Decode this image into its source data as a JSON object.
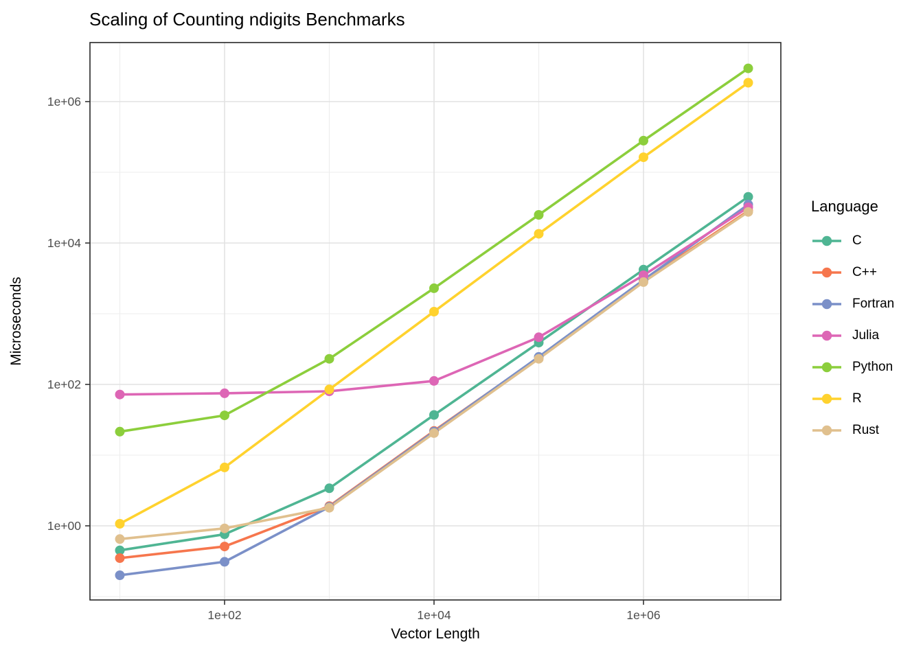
{
  "chart_data": {
    "type": "line",
    "title": "Scaling of Counting ndigits Benchmarks",
    "xlabel": "Vector Length",
    "ylabel": "Microseconds",
    "x_scale": "log10",
    "y_scale": "log10",
    "grid": true,
    "legend_title": "Language",
    "legend_position": "right",
    "x": [
      10,
      100,
      1000,
      10000,
      100000,
      1000000,
      10000000
    ],
    "x_ticks": [
      {
        "value": 100,
        "label": "1e+02"
      },
      {
        "value": 10000,
        "label": "1e+04"
      },
      {
        "value": 1000000,
        "label": "1e+06"
      }
    ],
    "y_ticks": [
      {
        "value": 1,
        "label": "1e+00"
      },
      {
        "value": 100,
        "label": "1e+02"
      },
      {
        "value": 10000,
        "label": "1e+04"
      },
      {
        "value": 1000000,
        "label": "1e+06"
      }
    ],
    "x_minor_grid_exponents": [
      1,
      3,
      5,
      7
    ],
    "x_major_grid_exponents": [
      2,
      4,
      6
    ],
    "y_major_grid_exponents": [
      0,
      2,
      4,
      6
    ],
    "y_minor_grid_exponents": [
      -1,
      1,
      3,
      5
    ],
    "series": [
      {
        "name": "C",
        "color": "#4FB593",
        "values": [
          0.45,
          0.76,
          3.4,
          37,
          390,
          4200,
          45000
        ]
      },
      {
        "name": "C++",
        "color": "#F6764D",
        "values": [
          0.35,
          0.51,
          1.9,
          22,
          240,
          2900,
          28500
        ]
      },
      {
        "name": "Fortran",
        "color": "#7B90C8",
        "values": [
          0.2,
          0.31,
          1.85,
          21.5,
          245,
          3000,
          35000
        ]
      },
      {
        "name": "Julia",
        "color": "#DD66B5",
        "values": [
          72,
          75,
          80,
          112,
          465,
          3500,
          32000
        ]
      },
      {
        "name": "Python",
        "color": "#8CCE3C",
        "values": [
          21.5,
          36.5,
          230,
          2290,
          25000,
          280000,
          2950000
        ]
      },
      {
        "name": "R",
        "color": "#FFD22E",
        "values": [
          1.07,
          6.7,
          85,
          1070,
          13500,
          163000,
          1850000
        ]
      },
      {
        "name": "Rust",
        "color": "#E0C08E",
        "values": [
          0.65,
          0.92,
          1.8,
          20.5,
          230,
          2800,
          27500
        ]
      }
    ],
    "style": {
      "panel_border_color": "#262626",
      "major_grid_color": "#E2E2E2",
      "minor_grid_color": "#EDEDED",
      "tick_color": "#333333",
      "tick_label_color": "#4D4D4D",
      "background": "#FFFFFF"
    }
  }
}
